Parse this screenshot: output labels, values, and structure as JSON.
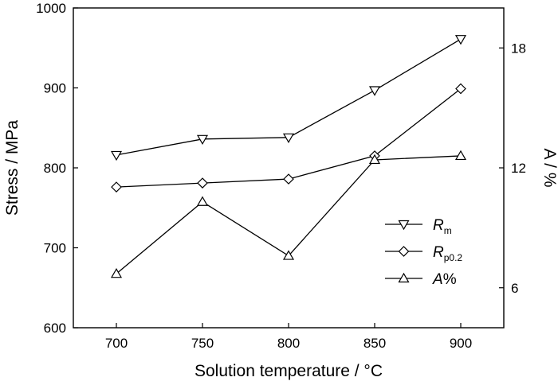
{
  "chart_data": {
    "type": "line",
    "x": [
      700,
      750,
      800,
      850,
      900
    ],
    "xlabel": "Solution temperature / °C",
    "xlim": [
      675,
      925
    ],
    "xticks": [
      700,
      750,
      800,
      850,
      900
    ],
    "ylabel": "Stress / MPa",
    "ylim": [
      600,
      1000
    ],
    "yticks": [
      600,
      700,
      800,
      900,
      1000
    ],
    "y2label": "A / %",
    "y2lim": [
      4,
      20
    ],
    "y2ticks": [
      6,
      12,
      18
    ],
    "grid": false,
    "legend_position": "bottom-right",
    "series": [
      {
        "name": "Rm",
        "axis": "left",
        "marker": "triangle-down",
        "values": [
          816,
          836,
          838,
          897,
          961
        ]
      },
      {
        "name": "Rp0.2",
        "axis": "left",
        "marker": "diamond",
        "values": [
          776,
          781,
          786,
          815,
          899
        ]
      },
      {
        "name": "A%",
        "axis": "right",
        "marker": "triangle-up",
        "values": [
          6.7,
          10.3,
          7.6,
          12.4,
          12.6
        ]
      }
    ],
    "legend": [
      {
        "series": "Rm",
        "main": "R",
        "sub": "m",
        "rest": ""
      },
      {
        "series": "Rp0.2",
        "main": "R",
        "sub": "p0.2",
        "rest": ""
      },
      {
        "series": "A%",
        "main": "A",
        "sub": "",
        "rest": "%"
      }
    ]
  }
}
